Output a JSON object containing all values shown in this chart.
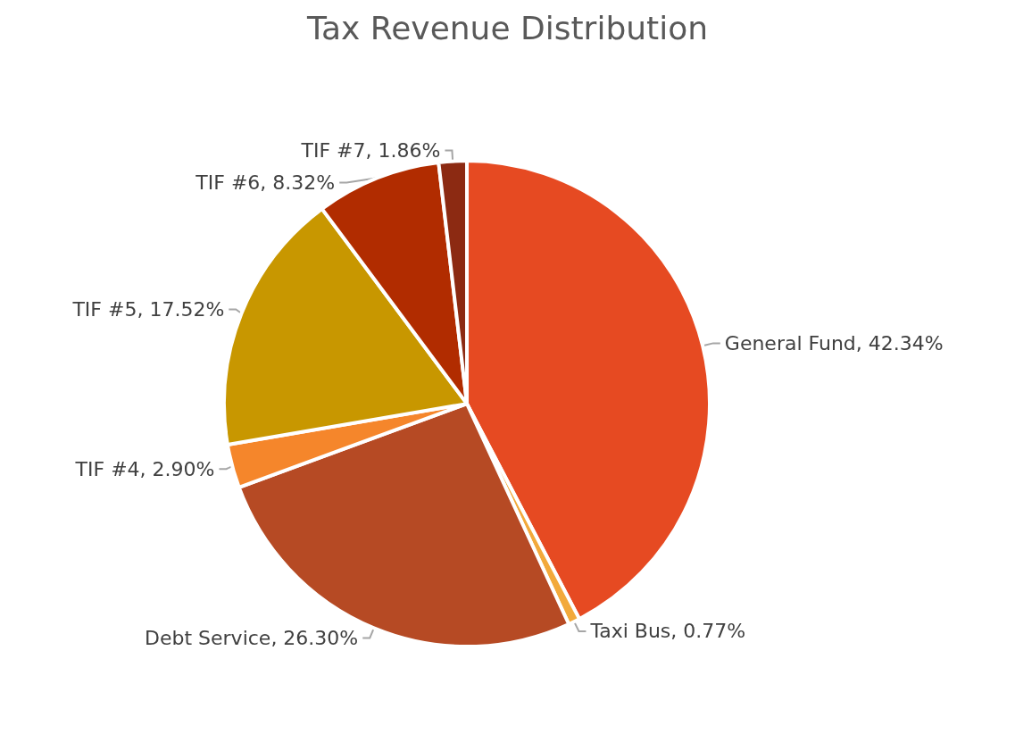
{
  "chart_data": {
    "type": "pie",
    "title": "Tax Revenue Distribution",
    "categories": [
      "General Fund",
      "Taxi Bus",
      "Debt Service",
      "TIF #4",
      "TIF #5",
      "TIF #6",
      "TIF #7"
    ],
    "values": [
      42.34,
      0.77,
      26.3,
      2.9,
      17.52,
      8.32,
      1.86
    ],
    "value_labels": [
      "42.34%",
      "0.77%",
      "26.30%",
      "2.90%",
      "17.52%",
      "8.32%",
      "1.86%"
    ],
    "colors": [
      "#e64a22",
      "#f2a93b",
      "#b64a24",
      "#f5862b",
      "#c89700",
      "#b12c00",
      "#8c2a12"
    ],
    "legend": false
  }
}
